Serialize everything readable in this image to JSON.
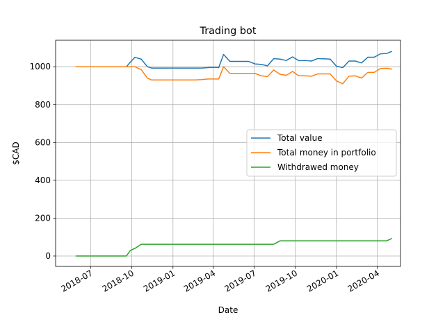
{
  "chart_data": {
    "type": "line",
    "title": "Trading bot",
    "xlabel": "Date",
    "ylabel": "$CAD",
    "xlim": [
      "2018-04-14",
      "2020-05-23"
    ],
    "ylim": [
      -55,
      1140
    ],
    "grid": true,
    "legend_position": "center-right",
    "x_ticks": [
      "2018-07-01",
      "2018-10-01",
      "2019-01-01",
      "2019-04-01",
      "2019-07-01",
      "2019-10-01",
      "2020-01-01",
      "2020-04-01"
    ],
    "x_tick_labels": [
      "2018-07",
      "2018-10",
      "2019-01",
      "2019-04",
      "2019-07",
      "2019-10",
      "2020-01",
      "2020-04"
    ],
    "y_ticks": [
      0,
      200,
      400,
      600,
      800,
      1000
    ],
    "y_tick_labels": [
      "0",
      "200",
      "400",
      "600",
      "800",
      "1000"
    ],
    "x": [
      "2018-05-30",
      "2018-06-13",
      "2018-06-27",
      "2018-07-11",
      "2018-07-25",
      "2018-08-08",
      "2018-08-22",
      "2018-09-05",
      "2018-09-19",
      "2018-09-28",
      "2018-10-08",
      "2018-10-22",
      "2018-11-05",
      "2018-11-14",
      "2018-11-28",
      "2018-12-12",
      "2018-12-26",
      "2019-01-09",
      "2019-01-23",
      "2019-02-06",
      "2019-02-20",
      "2019-03-06",
      "2019-03-20",
      "2019-04-03",
      "2019-04-13",
      "2019-04-24",
      "2019-05-08",
      "2019-05-22",
      "2019-06-05",
      "2019-06-19",
      "2019-07-03",
      "2019-07-17",
      "2019-07-31",
      "2019-08-14",
      "2019-08-28",
      "2019-09-11",
      "2019-09-25",
      "2019-10-09",
      "2019-10-23",
      "2019-11-06",
      "2019-11-20",
      "2019-12-04",
      "2019-12-18",
      "2020-01-01",
      "2020-01-15",
      "2020-01-29",
      "2020-02-12",
      "2020-02-26",
      "2020-03-11",
      "2020-03-25",
      "2020-04-08",
      "2020-04-22",
      "2020-05-03"
    ],
    "series": [
      {
        "name": "Total value",
        "color": "#1f77b4",
        "values": [
          1000,
          1000,
          1000,
          1000,
          1000,
          1000,
          1000,
          1000,
          1000,
          1025,
          1050,
          1040,
          1000,
          993,
          993,
          993,
          993,
          993,
          993,
          993,
          993,
          993,
          995,
          997,
          995,
          1065,
          1028,
          1028,
          1028,
          1028,
          1015,
          1012,
          1005,
          1043,
          1040,
          1033,
          1052,
          1032,
          1033,
          1030,
          1043,
          1042,
          1040,
          1003,
          995,
          1030,
          1030,
          1020,
          1050,
          1050,
          1068,
          1070,
          1080
        ]
      },
      {
        "name": "Total money in portfolio",
        "color": "#ff7f0e",
        "values": [
          1000,
          1000,
          1000,
          1000,
          1000,
          1000,
          1000,
          1000,
          1000,
          1000,
          1000,
          985,
          940,
          930,
          930,
          930,
          930,
          930,
          930,
          930,
          930,
          932,
          935,
          935,
          935,
          1000,
          965,
          965,
          965,
          965,
          965,
          952,
          948,
          983,
          960,
          955,
          975,
          952,
          952,
          950,
          962,
          962,
          962,
          925,
          910,
          950,
          952,
          940,
          970,
          970,
          990,
          992,
          988
        ]
      },
      {
        "name": "Withdrawed money",
        "color": "#2ca02c",
        "values": [
          0,
          0,
          0,
          0,
          0,
          0,
          0,
          0,
          0,
          30,
          40,
          62,
          62,
          62,
          62,
          62,
          62,
          62,
          62,
          62,
          62,
          62,
          62,
          62,
          62,
          62,
          62,
          62,
          62,
          62,
          62,
          62,
          62,
          62,
          80,
          80,
          80,
          80,
          80,
          80,
          80,
          80,
          80,
          80,
          80,
          80,
          80,
          80,
          80,
          80,
          80,
          80,
          92
        ]
      }
    ]
  }
}
